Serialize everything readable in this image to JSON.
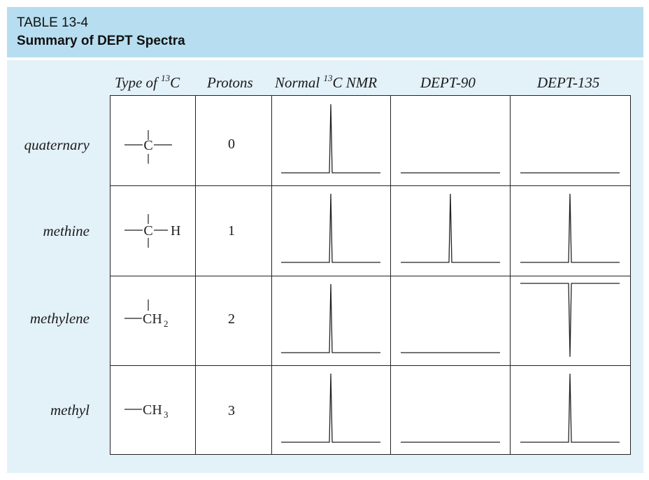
{
  "header": {
    "table_number": "TABLE 13-4",
    "caption": "Summary of DEPT Spectra"
  },
  "columns": {
    "type_prefix": "Type of ",
    "type_sup": "13",
    "type_suffix": "C",
    "protons": "Protons",
    "normal_prefix": "Normal ",
    "normal_sup": "13",
    "normal_suffix": "C NMR",
    "dept90": "DEPT-90",
    "dept135": "DEPT-135"
  },
  "rows": [
    {
      "label": "quaternary",
      "protons": "0",
      "structure": {
        "center": "C",
        "left": "—",
        "right": "—",
        "sub": ""
      },
      "spectra": {
        "normal": "up",
        "dept90": "none",
        "dept135": "none"
      }
    },
    {
      "label": "methine",
      "protons": "1",
      "structure": {
        "center": "C",
        "left": "—",
        "right": "—H",
        "sub": ""
      },
      "spectra": {
        "normal": "up",
        "dept90": "up",
        "dept135": "up"
      }
    },
    {
      "label": "methylene",
      "protons": "2",
      "structure": {
        "center": "CH",
        "left": "—",
        "right": "",
        "sub": "2"
      },
      "spectra": {
        "normal": "up",
        "dept90": "none",
        "dept135": "down"
      }
    },
    {
      "label": "methyl",
      "protons": "3",
      "structure": {
        "center": "CH",
        "left": "—",
        "right": "",
        "sub": "3"
      },
      "spectra": {
        "normal": "up",
        "dept90": "none",
        "dept135": "up"
      }
    }
  ],
  "colors": {
    "header_band": "#b7def0",
    "body_band": "#e3f1f9",
    "line": "#222222"
  }
}
